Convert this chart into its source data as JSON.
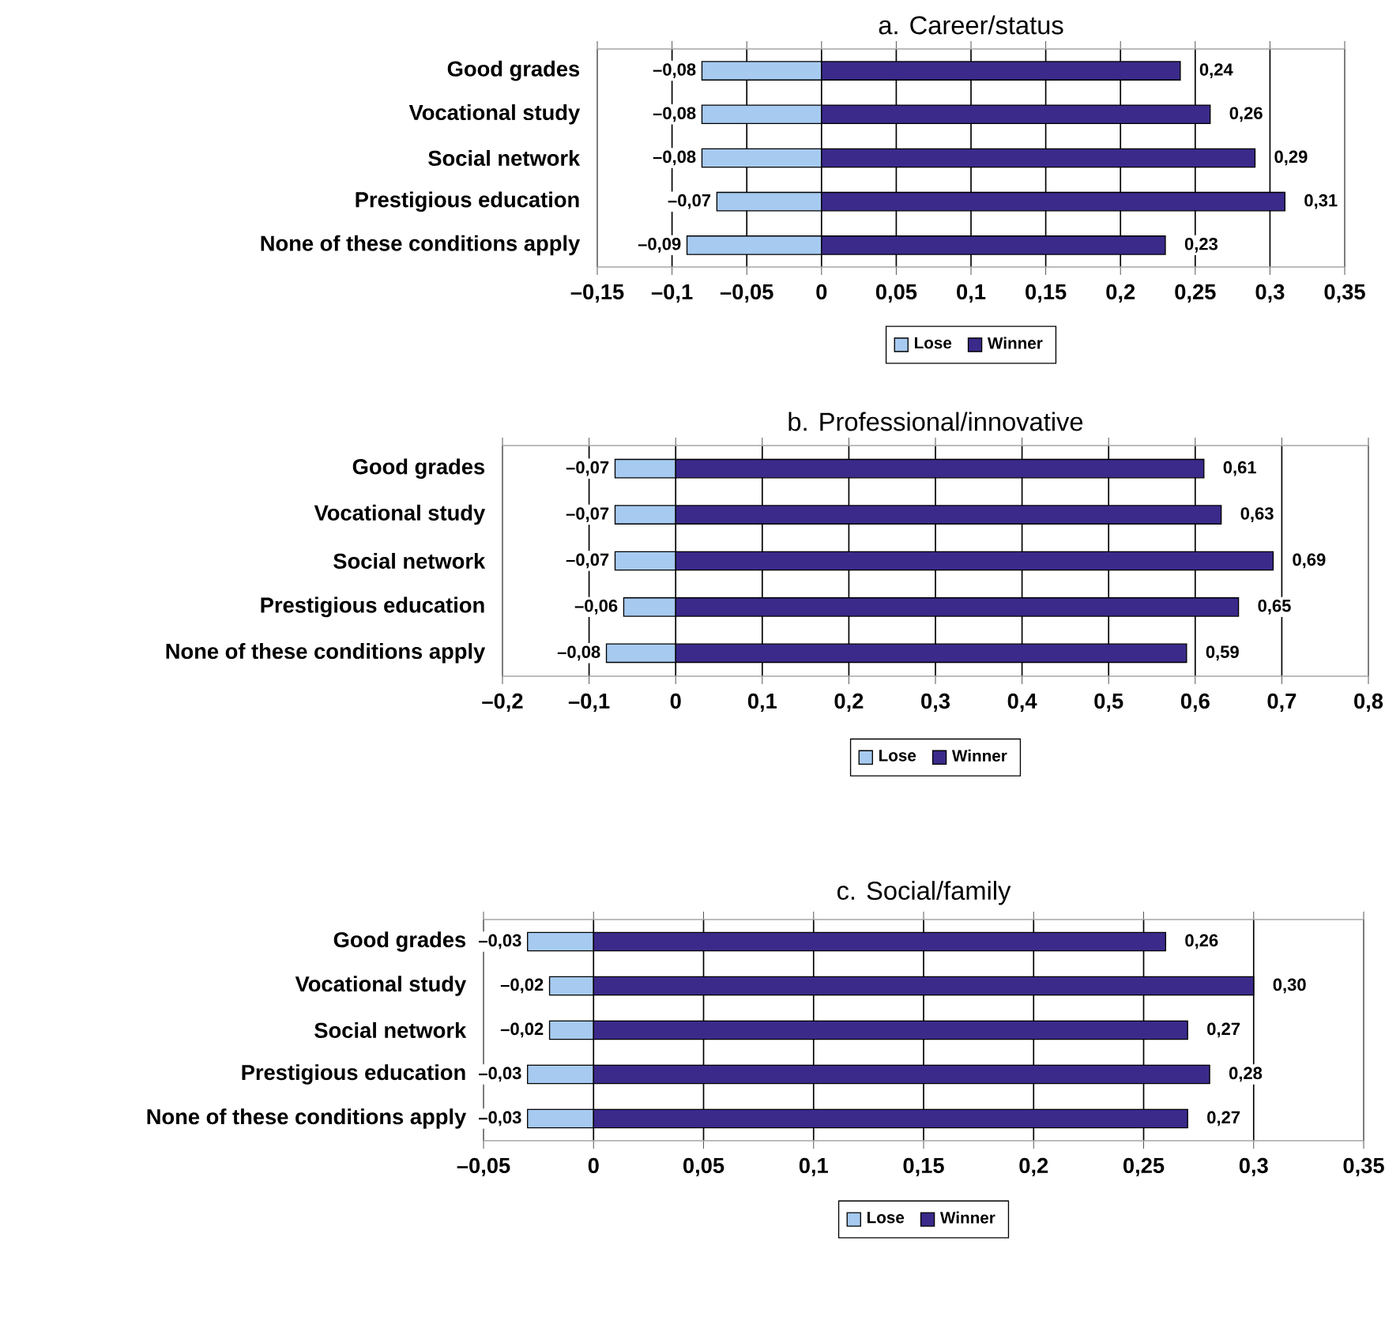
{
  "chart_data": [
    {
      "type": "bar",
      "orientation": "horizontal",
      "stacked": true,
      "title": "a. Career/status",
      "categories": [
        "Good grades",
        "Vocational study",
        "Social network",
        "Prestigious education",
        "None of these conditions apply"
      ],
      "series": [
        {
          "name": "Lose",
          "color": "#a6caf0",
          "values": [
            -0.08,
            -0.08,
            -0.08,
            -0.07,
            -0.09
          ],
          "value_labels": [
            "–0,08",
            "–0,08",
            "–0,08",
            "–0,07",
            "–0,09"
          ]
        },
        {
          "name": "Winner",
          "color": "#3b2a8a",
          "values": [
            0.24,
            0.26,
            0.29,
            0.31,
            0.23
          ],
          "value_labels": [
            "0,24",
            "0,26",
            "0,29",
            "0,31",
            "0,23"
          ]
        }
      ],
      "xlim": [
        -0.15,
        0.35
      ],
      "xticks": [
        {
          "value": -0.15,
          "label": "–0,15"
        },
        {
          "value": -0.1,
          "label": "–0,1"
        },
        {
          "value": -0.05,
          "label": "–0,05"
        },
        0,
        {
          "value": 0.05,
          "label": "0,05"
        },
        {
          "value": 0.1,
          "label": "0,1"
        },
        {
          "value": 0.15,
          "label": "0,15"
        },
        {
          "value": 0.2,
          "label": "0,2"
        },
        {
          "value": 0.25,
          "label": "0,25"
        },
        {
          "value": 0.3,
          "label": "0,3"
        },
        {
          "value": 0.35,
          "label": "0,35"
        }
      ],
      "grid": "x",
      "legend": "bottom"
    },
    {
      "type": "bar",
      "orientation": "horizontal",
      "stacked": true,
      "title": "b. Professional/innovative",
      "categories": [
        "Good grades",
        "Vocational study",
        "Social network",
        "Prestigious education",
        "None of these conditions apply"
      ],
      "series": [
        {
          "name": "Lose",
          "color": "#a6caf0",
          "values": [
            -0.07,
            -0.07,
            -0.07,
            -0.06,
            -0.08
          ],
          "value_labels": [
            "–0,07",
            "–0,07",
            "–0,07",
            "–0,06",
            "–0,08"
          ]
        },
        {
          "name": "Winner",
          "color": "#3b2a8a",
          "values": [
            0.61,
            0.63,
            0.69,
            0.65,
            0.59
          ],
          "value_labels": [
            "0,61",
            "0,63",
            "0,69",
            "0,65",
            "0,59"
          ]
        }
      ],
      "xlim": [
        -0.2,
        0.8
      ],
      "xticks": [
        {
          "value": -0.2,
          "label": "–0,2"
        },
        {
          "value": -0.1,
          "label": "–0,1"
        },
        0,
        {
          "value": 0.1,
          "label": "0,1"
        },
        {
          "value": 0.2,
          "label": "0,2"
        },
        {
          "value": 0.3,
          "label": "0,3"
        },
        {
          "value": 0.4,
          "label": "0,4"
        },
        {
          "value": 0.5,
          "label": "0,5"
        },
        {
          "value": 0.6,
          "label": "0,6"
        },
        {
          "value": 0.7,
          "label": "0,7"
        },
        {
          "value": 0.8,
          "label": "0,8"
        }
      ],
      "grid": "x",
      "legend": "bottom"
    },
    {
      "type": "bar",
      "orientation": "horizontal",
      "stacked": true,
      "title": "c. Social/family",
      "categories": [
        "Good grades",
        "Vocational study",
        "Social network",
        "Prestigious education",
        "None of these conditions apply"
      ],
      "series": [
        {
          "name": "Lose",
          "color": "#a6caf0",
          "values": [
            -0.03,
            -0.02,
            -0.02,
            -0.03,
            -0.03
          ],
          "value_labels": [
            "–0,03",
            "–0,02",
            "–0,02",
            "–0,03",
            "–0,03"
          ]
        },
        {
          "name": "Winner",
          "color": "#3b2a8a",
          "values": [
            0.26,
            0.3,
            0.27,
            0.28,
            0.27
          ],
          "value_labels": [
            "0,26",
            "0,30",
            "0,27",
            "0,28",
            "0,27"
          ]
        }
      ],
      "xlim": [
        -0.05,
        0.35
      ],
      "xticks": [
        {
          "value": -0.05,
          "label": "–0,05"
        },
        0,
        {
          "value": 0.05,
          "label": "0,05"
        },
        {
          "value": 0.1,
          "label": "0,1"
        },
        {
          "value": 0.15,
          "label": "0,15"
        },
        {
          "value": 0.2,
          "label": "0,2"
        },
        {
          "value": 0.25,
          "label": "0,25"
        },
        {
          "value": 0.3,
          "label": "0,3"
        },
        {
          "value": 0.35,
          "label": "0,35"
        }
      ],
      "grid": "x",
      "legend": "bottom"
    }
  ]
}
